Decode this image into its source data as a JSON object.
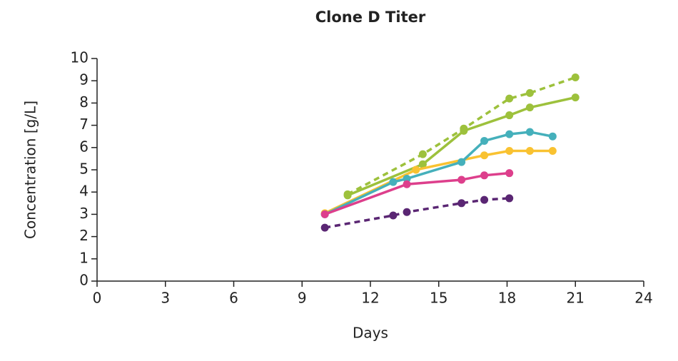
{
  "chart_data": {
    "type": "line",
    "title": "Clone D Titer",
    "x_label": "Days",
    "y_label": "Concentration [g/L]",
    "xlim": [
      0,
      24
    ],
    "xticks": [
      0,
      3,
      6,
      9,
      12,
      15,
      18,
      21,
      24
    ],
    "ylim": [
      0,
      10
    ],
    "yticks": [
      0,
      1,
      2,
      3,
      4,
      5,
      6,
      7,
      8,
      9,
      10
    ],
    "series": [
      {
        "color": "#9dc13c",
        "dashed": true,
        "x": [
          11,
          14.3,
          16.1,
          18.1,
          19,
          21
        ],
        "values": [
          3.9,
          5.7,
          6.85,
          8.2,
          8.45,
          9.15
        ]
      },
      {
        "color": "#9dc13c",
        "dashed": false,
        "x": [
          11,
          14.3,
          16.1,
          18.1,
          19,
          21
        ],
        "values": [
          3.85,
          5.25,
          6.75,
          7.45,
          7.8,
          8.25
        ]
      },
      {
        "color": "#f9c231",
        "dashed": false,
        "x": [
          10,
          14,
          17,
          18.1,
          19,
          20
        ],
        "values": [
          3.05,
          5.0,
          5.65,
          5.85,
          5.85,
          5.85
        ]
      },
      {
        "color": "#45b0bb",
        "dashed": false,
        "x": [
          10,
          13,
          13.6,
          16,
          17,
          18.1,
          19,
          20
        ],
        "values": [
          3.0,
          4.45,
          4.6,
          5.35,
          6.3,
          6.6,
          6.7,
          6.5
        ]
      },
      {
        "color": "#dd3f8c",
        "dashed": false,
        "x": [
          10,
          13.6,
          16,
          17,
          18.1
        ],
        "values": [
          3.0,
          4.35,
          4.55,
          4.75,
          4.85
        ]
      },
      {
        "color": "#5a2673",
        "dashed": true,
        "x": [
          10,
          13,
          13.6,
          16,
          17,
          18.1
        ],
        "values": [
          2.4,
          2.95,
          3.1,
          3.5,
          3.65,
          3.72
        ]
      }
    ]
  }
}
